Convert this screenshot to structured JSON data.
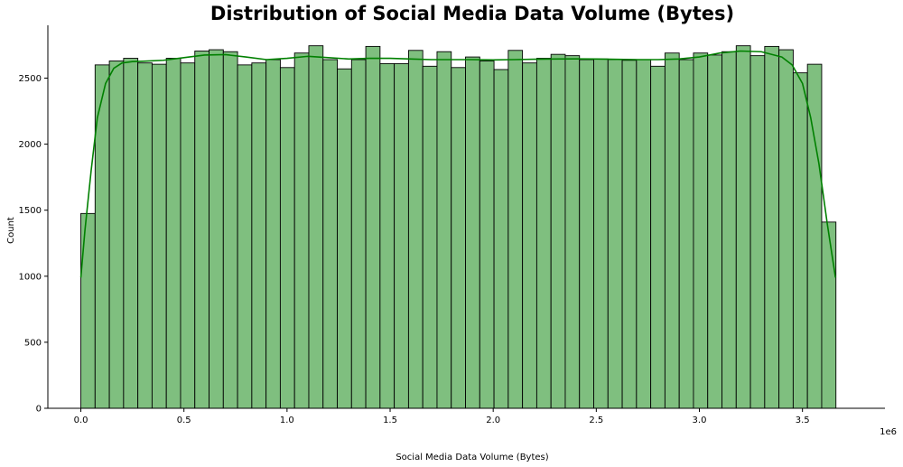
{
  "chart_data": {
    "type": "bar",
    "title": "Distribution of Social Media Data Volume (Bytes)",
    "xlabel": "Social Media Data Volume (Bytes)",
    "ylabel": "Count",
    "x_offset_label": "1e6",
    "xlim": [
      -0.16,
      3.9
    ],
    "ylim": [
      0,
      2900
    ],
    "xticks": [
      0.0,
      0.5,
      1.0,
      1.5,
      2.0,
      2.5,
      3.0,
      3.5
    ],
    "xtick_labels": [
      "0.0",
      "0.5",
      "1.0",
      "1.5",
      "2.0",
      "2.5",
      "3.0",
      "3.5"
    ],
    "yticks": [
      0,
      500,
      1000,
      1500,
      2000,
      2500
    ],
    "ytick_labels": [
      "0",
      "500",
      "1000",
      "1500",
      "2000",
      "2500"
    ],
    "bin_start": 0.0,
    "bin_width": 0.0691,
    "counts": [
      1475,
      2600,
      2630,
      2650,
      2615,
      2605,
      2650,
      2615,
      2705,
      2715,
      2700,
      2600,
      2615,
      2640,
      2580,
      2690,
      2745,
      2640,
      2570,
      2640,
      2740,
      2610,
      2610,
      2710,
      2590,
      2700,
      2580,
      2660,
      2630,
      2565,
      2710,
      2615,
      2650,
      2680,
      2670,
      2640,
      2645,
      2640,
      2635,
      2640,
      2590,
      2690,
      2640,
      2690,
      2675,
      2700,
      2745,
      2670,
      2740,
      2715,
      2540,
      2605,
      1410
    ],
    "kde": {
      "x": [
        0.0,
        0.02,
        0.05,
        0.08,
        0.12,
        0.16,
        0.2,
        0.25,
        0.3,
        0.4,
        0.5,
        0.6,
        0.7,
        0.8,
        0.9,
        1.0,
        1.1,
        1.2,
        1.3,
        1.4,
        1.5,
        1.6,
        1.7,
        1.8,
        1.9,
        2.0,
        2.1,
        2.2,
        2.3,
        2.4,
        2.5,
        2.6,
        2.7,
        2.8,
        2.9,
        3.0,
        3.1,
        3.2,
        3.3,
        3.4,
        3.45,
        3.5,
        3.54,
        3.58,
        3.62,
        3.66
      ],
      "y": [
        990,
        1350,
        1800,
        2200,
        2460,
        2575,
        2615,
        2625,
        2628,
        2635,
        2655,
        2675,
        2678,
        2660,
        2640,
        2650,
        2665,
        2655,
        2645,
        2650,
        2650,
        2645,
        2640,
        2640,
        2640,
        2638,
        2640,
        2643,
        2645,
        2646,
        2645,
        2642,
        2640,
        2640,
        2645,
        2660,
        2690,
        2705,
        2700,
        2660,
        2600,
        2460,
        2200,
        1850,
        1400,
        990
      ]
    },
    "bar_fill": "#7fbf7f",
    "bar_edge": "#000000",
    "kde_color": "#008000",
    "grid": false,
    "legend": "none"
  }
}
